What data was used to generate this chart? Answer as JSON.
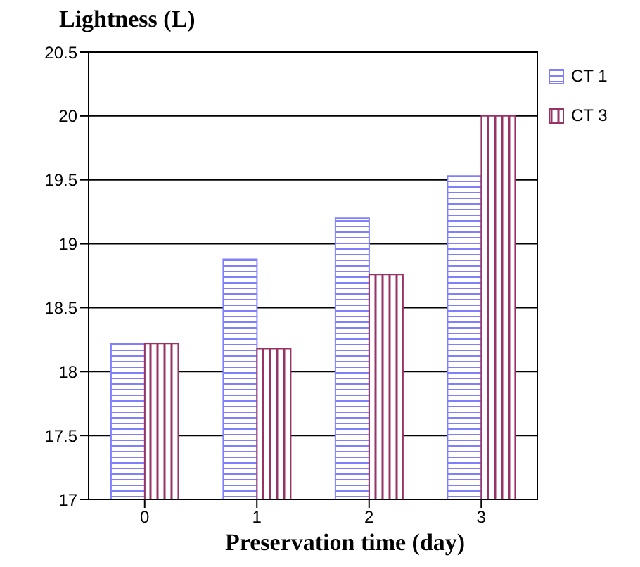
{
  "chart_data": {
    "type": "bar",
    "title": "Lightness (L)",
    "xlabel": "Preservation time (day)",
    "categories": [
      "0",
      "1",
      "2",
      "3"
    ],
    "series": [
      {
        "name": "CT 1",
        "color": "#8080ff",
        "values": [
          18.22,
          18.88,
          19.2,
          19.53
        ]
      },
      {
        "name": "CT 3",
        "color": "#993366",
        "values": [
          18.22,
          18.18,
          18.76,
          20.0
        ]
      }
    ],
    "ylim": [
      17,
      20.5
    ],
    "yticks": [
      17,
      17.5,
      18,
      18.5,
      19,
      19.5,
      20,
      20.5
    ],
    "grid": "y",
    "legend": "top right"
  }
}
